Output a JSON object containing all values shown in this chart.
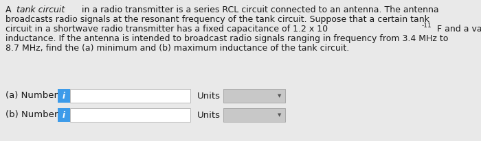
{
  "background_color": "#e9e9e9",
  "text_color": "#1a1a1a",
  "info_btn_color": "#3d9be9",
  "info_btn_text": "i",
  "input_box_color": "#ffffff",
  "input_box_border": "#bbbbbb",
  "dropdown_color": "#c8c8c8",
  "dropdown_arrow_color": "#555555",
  "label_a": "(a) Number",
  "label_b": "(b) Number",
  "units_label": "Units",
  "font_size_body": 9.0,
  "font_size_labels": 9.5,
  "line1": "A ",
  "line1_italic": "tank circuit",
  "line1_rest": " in a radio transmitter is a series RCL circuit connected to an antenna. The antenna",
  "line2": "broadcasts radio signals at the resonant frequency of the tank circuit. Suppose that a certain tank",
  "line3a": "circuit in a shortwave radio transmitter has a fixed capacitance of 1.2 x 10",
  "line3b": "-11",
  "line3c": " F and a variable",
  "line4": "inductance. If the antenna is intended to broadcast radio signals ranging in frequency from 3.4 MHz to",
  "line5": "8.7 MHz, find the (a) minimum and (b) maximum inductance of the tank circuit."
}
